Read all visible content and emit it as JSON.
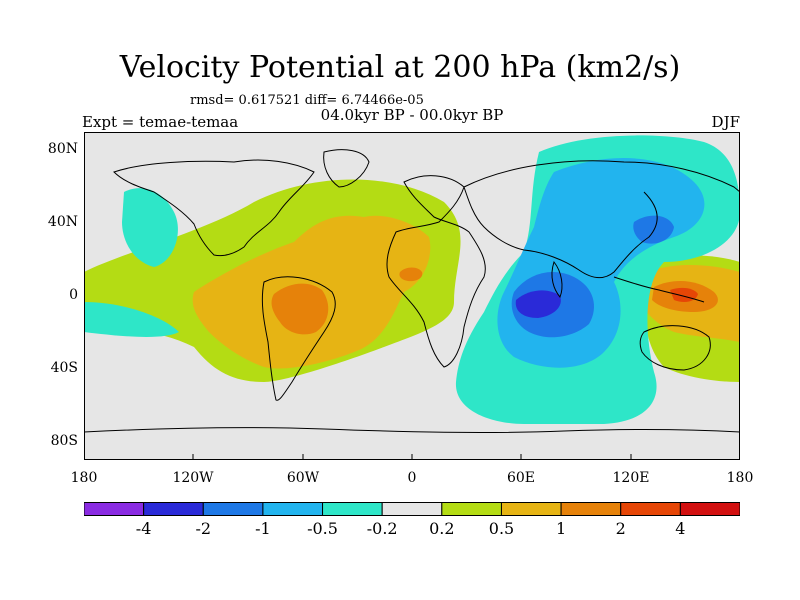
{
  "title": "Velocity Potential at 200 hPa (km2/s)",
  "stats": "rmsd= 0.617521 diff= 6.74466e-05",
  "period": "04.0kyr BP - 00.0kyr BP",
  "experiment": "Expt = temae-temaa",
  "season": "DJF",
  "lat_labels": [
    "80N",
    "40N",
    "0",
    "40S",
    "80S"
  ],
  "lon_labels": [
    "180",
    "120W",
    "60W",
    "0",
    "60E",
    "120E",
    "180"
  ],
  "colorbar": {
    "labels": [
      "-4",
      "-2",
      "-1",
      "-0.5",
      "-0.2",
      "0.2",
      "0.5",
      "1",
      "2",
      "4"
    ],
    "colors": [
      "#8a2be2",
      "#2a2ad8",
      "#1e78e6",
      "#22b4ee",
      "#2ee6c8",
      "#e6e6e6",
      "#b4dc14",
      "#e6b414",
      "#e6820a",
      "#e64606",
      "#d21010"
    ]
  }
}
